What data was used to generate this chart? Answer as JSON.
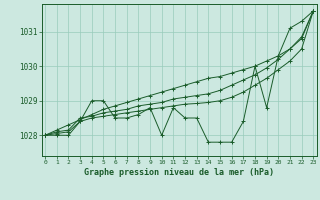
{
  "title": "Graphe pression niveau de la mer (hPa)",
  "background_color": "#cce8e0",
  "grid_color": "#99ccbb",
  "line_color": "#1a5c2a",
  "x_ticks": [
    0,
    1,
    2,
    3,
    4,
    5,
    6,
    7,
    8,
    9,
    10,
    11,
    12,
    13,
    14,
    15,
    16,
    17,
    18,
    19,
    20,
    21,
    22,
    23
  ],
  "y_ticks": [
    1028,
    1029,
    1030,
    1031
  ],
  "ylim": [
    1027.4,
    1031.8
  ],
  "xlim": [
    -0.3,
    23.3
  ],
  "series_jagged": [
    1028.0,
    1028.0,
    1028.0,
    1028.4,
    1029.0,
    1029.0,
    1028.5,
    1028.5,
    1028.6,
    1028.8,
    1028.0,
    1028.8,
    1028.5,
    1028.5,
    1027.8,
    1027.8,
    1027.8,
    1028.4,
    1030.0,
    1028.8,
    1030.3,
    1031.1,
    1031.3,
    1031.6
  ],
  "series_diag_high": [
    1028.0,
    1028.1,
    1028.15,
    1028.5,
    1028.55,
    1028.65,
    1028.7,
    1028.75,
    1028.85,
    1028.9,
    1028.95,
    1029.05,
    1029.1,
    1029.15,
    1029.2,
    1029.3,
    1029.45,
    1029.6,
    1029.75,
    1029.95,
    1030.2,
    1030.5,
    1030.85,
    1031.6
  ],
  "series_diag_mid": [
    1028.0,
    1028.05,
    1028.1,
    1028.4,
    1028.5,
    1028.55,
    1028.6,
    1028.65,
    1028.7,
    1028.75,
    1028.8,
    1028.85,
    1028.9,
    1028.92,
    1028.95,
    1029.0,
    1029.1,
    1029.25,
    1029.45,
    1029.65,
    1029.9,
    1030.15,
    1030.5,
    1031.6
  ],
  "series_straight": [
    1028.0,
    1028.15,
    1028.3,
    1028.45,
    1028.6,
    1028.75,
    1028.85,
    1028.95,
    1029.05,
    1029.15,
    1029.25,
    1029.35,
    1029.45,
    1029.55,
    1029.65,
    1029.7,
    1029.8,
    1029.9,
    1030.0,
    1030.15,
    1030.3,
    1030.5,
    1030.8,
    1031.6
  ]
}
